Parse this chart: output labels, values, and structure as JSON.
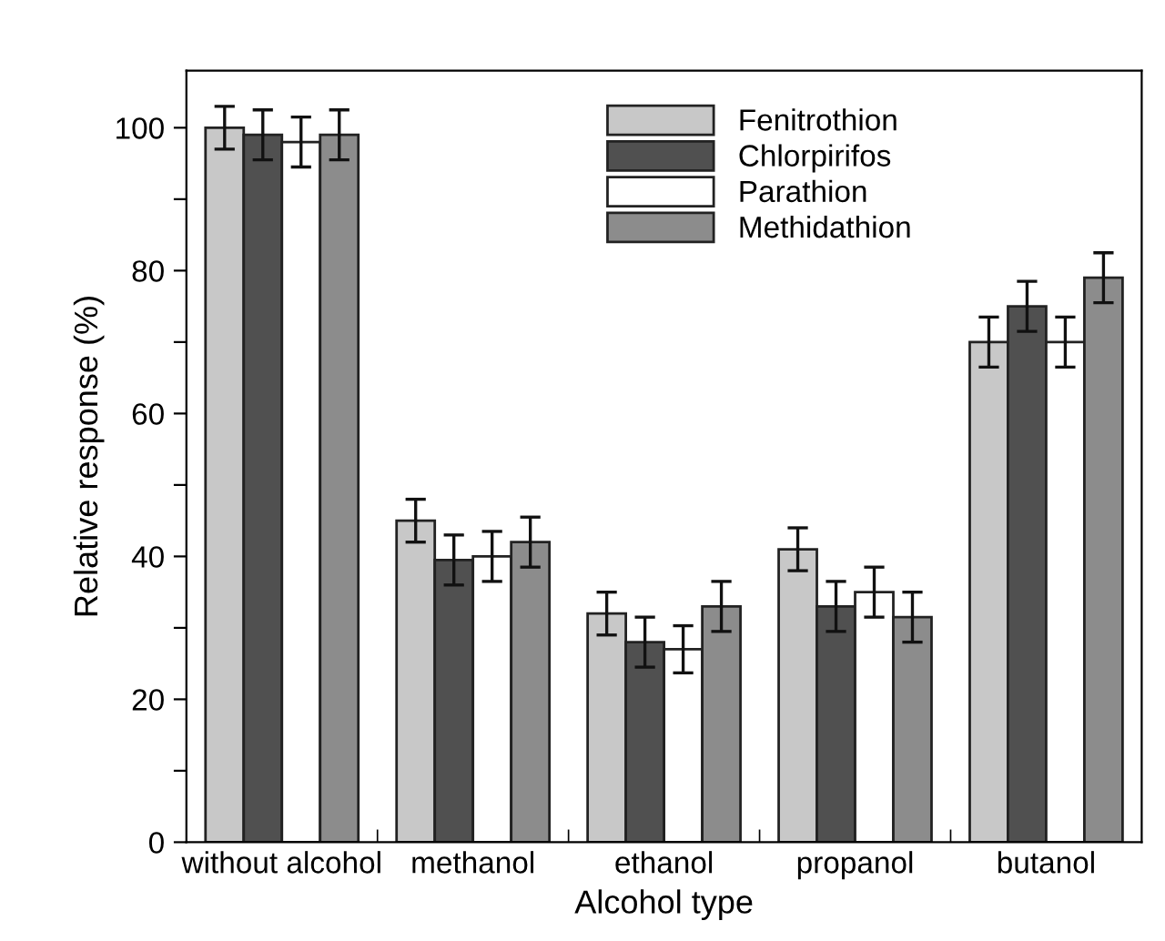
{
  "chart_data": {
    "type": "bar",
    "xlabel": "Alcohol type",
    "ylabel": "Relative response (%)",
    "categories": [
      "without alcohol",
      "methanol",
      "ethanol",
      "propanol",
      "butanol"
    ],
    "series": [
      {
        "name": "Fenitrothion",
        "color": "#c8c8c8",
        "values": [
          100,
          45,
          32,
          41,
          70
        ],
        "errors": [
          3,
          3,
          3,
          3,
          3.5
        ]
      },
      {
        "name": "Chlorpirifos",
        "color": "#505050",
        "values": [
          99,
          39.5,
          28,
          33,
          75
        ],
        "errors": [
          3.5,
          3.5,
          3.5,
          3.5,
          3.5
        ]
      },
      {
        "name": "Parathion",
        "color": "#ffffff",
        "values": [
          98,
          40,
          27,
          35,
          70
        ],
        "errors": [
          3.5,
          3.5,
          3.3,
          3.5,
          3.5
        ]
      },
      {
        "name": "Methidathion",
        "color": "#8c8c8c",
        "values": [
          99,
          42,
          33,
          31.5,
          79
        ],
        "errors": [
          3.5,
          3.5,
          3.5,
          3.5,
          3.5
        ]
      }
    ],
    "ylim": [
      0,
      108
    ],
    "yticks": [
      0,
      {
        "value": 10,
        "label": null
      },
      20,
      {
        "value": 30,
        "label": null
      },
      40,
      {
        "value": 50,
        "label": null
      },
      60,
      {
        "value": 70,
        "label": null
      },
      80,
      {
        "value": 90,
        "label": null
      },
      100
    ],
    "grid": false,
    "legend": "top"
  }
}
